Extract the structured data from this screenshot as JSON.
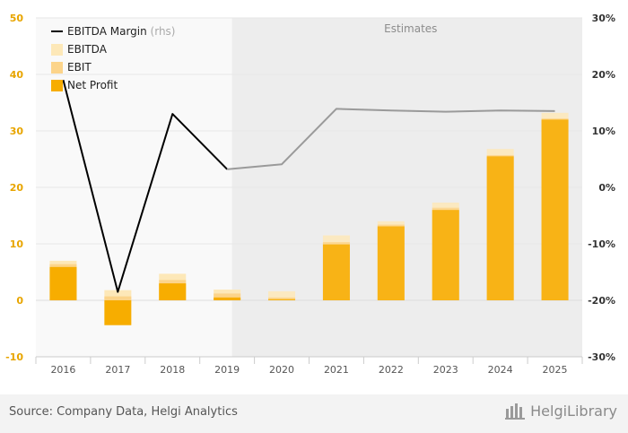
{
  "chart_data": {
    "type": "bar",
    "categories": [
      "2016",
      "2017",
      "2018",
      "2019",
      "2020",
      "2021",
      "2022",
      "2023",
      "2024",
      "2025"
    ],
    "estimates_start_index": 4,
    "estimates_label": "Estimates",
    "series": [
      {
        "name": "EBITDA",
        "kind": "bar",
        "axis": "left",
        "values": [
          7.0,
          1.8,
          4.7,
          1.9,
          1.6,
          11.5,
          14.0,
          17.3,
          26.8,
          33.2
        ]
      },
      {
        "name": "EBIT",
        "kind": "bar",
        "axis": "left",
        "values": [
          6.4,
          0.7,
          3.6,
          1.2,
          0.5,
          10.3,
          13.4,
          16.4,
          25.7,
          32.2
        ]
      },
      {
        "name": "Net Profit",
        "kind": "bar",
        "axis": "left",
        "values": [
          5.9,
          -4.4,
          3.0,
          0.5,
          0.2,
          9.9,
          13.1,
          16.0,
          25.5,
          32.0
        ]
      },
      {
        "name": "EBITDA Margin",
        "legend_suffix": "(rhs)",
        "kind": "line",
        "axis": "right",
        "values": [
          19.0,
          -18.5,
          13.0,
          3.2,
          4.1,
          13.9,
          13.6,
          13.4,
          13.6,
          13.5
        ]
      }
    ],
    "y_left": {
      "min": -10,
      "max": 50,
      "ticks": [
        "-10",
        "0",
        "10",
        "20",
        "30",
        "40",
        "50"
      ]
    },
    "y_right": {
      "min": -30,
      "max": 30,
      "ticks": [
        "-30%",
        "-20%",
        "-10%",
        "0%",
        "10%",
        "20%",
        "30%"
      ]
    },
    "legend_position": "top-left",
    "grid": true,
    "colors": {
      "ebitda": "#fde8b8",
      "ebit": "#fcd48a",
      "net_profit": "#f7ad00",
      "line_actual": "#000000",
      "line_estimate": "#9a9a9a",
      "estimate_shade": "#ededed",
      "left_axis_labels": "#e8a500",
      "grid": "#e6e6e6"
    }
  },
  "footer": {
    "source": "Source: Company Data, Helgi Analytics",
    "logo_text": "HelgiLibrary"
  }
}
